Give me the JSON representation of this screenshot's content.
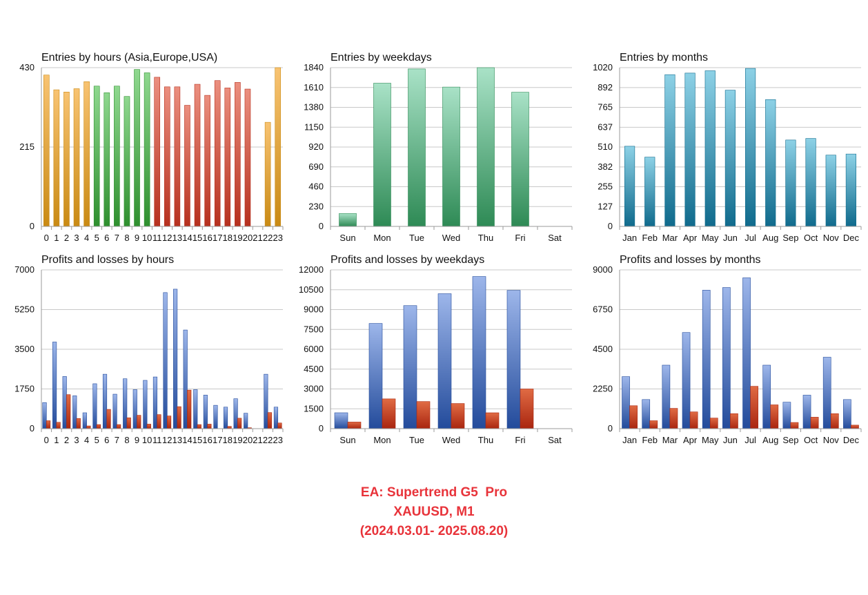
{
  "colors": {
    "gold_top": "#f8c372",
    "gold_bottom": "#c98a14",
    "green_top": "#8fd88f",
    "green_bottom": "#2e8f2e",
    "red_top": "#eb8f7f",
    "red_bottom": "#b6301e",
    "mint_top": "#a9e2c7",
    "mint_bottom": "#2e8a55",
    "teal_top": "#8dd1e6",
    "teal_bottom": "#0f6a8c",
    "blue_top": "#9db6ea",
    "blue_bottom": "#234b9b",
    "loss_top": "#e06b44",
    "loss_bottom": "#a9250f",
    "grid": "#c8c8c8",
    "caption": "#e8333a"
  },
  "caption": {
    "line1": "EA: Supertrend G5  Pro",
    "line2": "XAUUSD, M1",
    "line3": "(2024.03.01- 2025.08.20)"
  },
  "chart_data": [
    {
      "id": "entries-hours",
      "type": "bar",
      "title": "Entries by hours (Asia,Europe,USA)",
      "categories": [
        "0",
        "1",
        "2",
        "3",
        "4",
        "5",
        "6",
        "7",
        "8",
        "9",
        "10",
        "11",
        "12",
        "13",
        "14",
        "15",
        "16",
        "17",
        "18",
        "19",
        "20",
        "21",
        "22",
        "23"
      ],
      "yticks": [
        0,
        215,
        430
      ],
      "ylim": [
        0,
        430
      ],
      "series": [
        {
          "values": [
            410,
            370,
            364,
            373,
            392,
            380,
            362,
            380,
            352,
            425,
            416,
            404,
            378,
            378,
            328,
            385,
            355,
            395,
            375,
            390,
            372,
            0,
            282,
            430
          ]
        }
      ],
      "session_colors": [
        "gold",
        "gold",
        "gold",
        "gold",
        "gold",
        "green",
        "green",
        "green",
        "green",
        "green",
        "green",
        "red",
        "red",
        "red",
        "red",
        "red",
        "red",
        "red",
        "red",
        "red",
        "red",
        "gold",
        "gold",
        "gold"
      ]
    },
    {
      "id": "entries-weekdays",
      "type": "bar",
      "title": "Entries by weekdays",
      "categories": [
        "Sun",
        "Mon",
        "Tue",
        "Wed",
        "Thu",
        "Fri",
        "Sat"
      ],
      "yticks": [
        0,
        230,
        460,
        690,
        920,
        1150,
        1380,
        1610,
        1840
      ],
      "ylim": [
        0,
        1840
      ],
      "series": [
        {
          "values": [
            150,
            1660,
            1825,
            1615,
            1840,
            1555,
            0
          ]
        }
      ]
    },
    {
      "id": "entries-months",
      "type": "bar",
      "title": "Entries by months",
      "categories": [
        "Jan",
        "Feb",
        "Mar",
        "Apr",
        "May",
        "Jun",
        "Jul",
        "Aug",
        "Sep",
        "Oct",
        "Nov",
        "Dec"
      ],
      "yticks": [
        0,
        127,
        255,
        382,
        510,
        637,
        765,
        892,
        1020
      ],
      "ylim": [
        0,
        1020
      ],
      "series": [
        {
          "values": [
            515,
            445,
            975,
            985,
            1000,
            875,
            1015,
            815,
            555,
            565,
            458,
            465
          ]
        }
      ]
    },
    {
      "id": "pl-hours",
      "type": "bar",
      "title": "Profits and losses by hours",
      "categories": [
        "0",
        "1",
        "2",
        "3",
        "4",
        "5",
        "6",
        "7",
        "8",
        "9",
        "10",
        "11",
        "12",
        "13",
        "14",
        "15",
        "16",
        "17",
        "18",
        "19",
        "20",
        "21",
        "22",
        "23"
      ],
      "yticks": [
        0,
        1750,
        3500,
        5250,
        7000
      ],
      "ylim": [
        0,
        7000
      ],
      "series": [
        {
          "values": [
            1150,
            3820,
            2300,
            1450,
            700,
            1980,
            2400,
            1520,
            2200,
            1720,
            2130,
            2280,
            6000,
            6150,
            4350,
            1720,
            1480,
            1030,
            950,
            1320,
            680,
            0,
            2400,
            950
          ]
        },
        {
          "values": [
            350,
            280,
            1500,
            450,
            120,
            180,
            850,
            180,
            480,
            590,
            200,
            620,
            560,
            970,
            1700,
            180,
            200,
            0,
            100,
            460,
            40,
            0,
            710,
            250
          ]
        }
      ]
    },
    {
      "id": "pl-weekdays",
      "type": "bar",
      "title": "Profits and losses by weekdays",
      "categories": [
        "Sun",
        "Mon",
        "Tue",
        "Wed",
        "Thu",
        "Fri",
        "Sat"
      ],
      "yticks": [
        0,
        1500,
        3000,
        4500,
        6000,
        7500,
        9000,
        10500,
        12000
      ],
      "ylim": [
        0,
        12000
      ],
      "series": [
        {
          "values": [
            1200,
            7950,
            9300,
            10200,
            11500,
            10450,
            0
          ]
        },
        {
          "values": [
            500,
            2250,
            2050,
            1900,
            1200,
            3000,
            0
          ]
        }
      ]
    },
    {
      "id": "pl-months",
      "type": "bar",
      "title": "Profits and losses by months",
      "categories": [
        "Jan",
        "Feb",
        "Mar",
        "Apr",
        "May",
        "Jun",
        "Jul",
        "Aug",
        "Sep",
        "Oct",
        "Nov",
        "Dec"
      ],
      "yticks": [
        0,
        2250,
        4500,
        6750,
        9000
      ],
      "ylim": [
        0,
        9000
      ],
      "series": [
        {
          "values": [
            2950,
            1650,
            3600,
            5450,
            7850,
            8000,
            8550,
            3600,
            1500,
            1900,
            4050,
            1650
          ]
        },
        {
          "values": [
            1300,
            450,
            1150,
            950,
            600,
            850,
            2400,
            1350,
            350,
            650,
            850,
            200
          ]
        }
      ]
    }
  ]
}
